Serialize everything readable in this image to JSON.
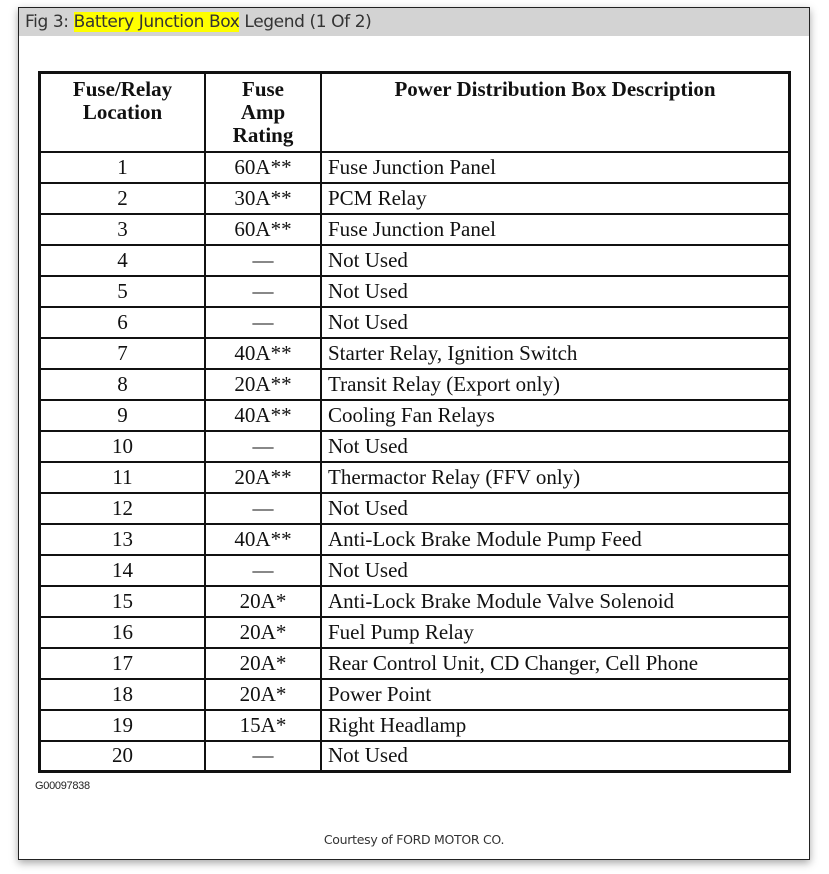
{
  "title": {
    "prefix": "Fig 3: ",
    "highlight": "Battery Junction Box",
    "suffix": " Legend (1 Of 2)"
  },
  "table": {
    "headers": [
      "Fuse/Relay Location",
      "Fuse Amp Rating",
      "Power Distribution Box Description"
    ],
    "rows": [
      [
        "1",
        "60A**",
        "Fuse Junction Panel"
      ],
      [
        "2",
        "30A**",
        "PCM Relay"
      ],
      [
        "3",
        "60A**",
        "Fuse Junction Panel"
      ],
      [
        "4",
        "—",
        "Not Used"
      ],
      [
        "5",
        "—",
        "Not Used"
      ],
      [
        "6",
        "—",
        "Not Used"
      ],
      [
        "7",
        "40A**",
        "Starter Relay, Ignition Switch"
      ],
      [
        "8",
        "20A**",
        "Transit Relay (Export only)"
      ],
      [
        "9",
        "40A**",
        "Cooling Fan Relays"
      ],
      [
        "10",
        "—",
        "Not Used"
      ],
      [
        "11",
        "20A**",
        "Thermactor Relay (FFV only)"
      ],
      [
        "12",
        "—",
        "Not Used"
      ],
      [
        "13",
        "40A**",
        "Anti-Lock Brake Module Pump Feed"
      ],
      [
        "14",
        "—",
        "Not Used"
      ],
      [
        "15",
        "20A*",
        "Anti-Lock Brake Module Valve Solenoid"
      ],
      [
        "16",
        "20A*",
        "Fuel Pump Relay"
      ],
      [
        "17",
        "20A*",
        "Rear Control Unit, CD Changer, Cell Phone"
      ],
      [
        "18",
        "20A*",
        "Power Point"
      ],
      [
        "19",
        "15A*",
        "Right Headlamp"
      ],
      [
        "20",
        "—",
        "Not Used"
      ]
    ]
  },
  "figure_code": "G00097838",
  "courtesy": "Courtesy of FORD MOTOR CO.",
  "colors": {
    "highlight": "#ffff00",
    "titlebar": "#d3d3d3"
  }
}
